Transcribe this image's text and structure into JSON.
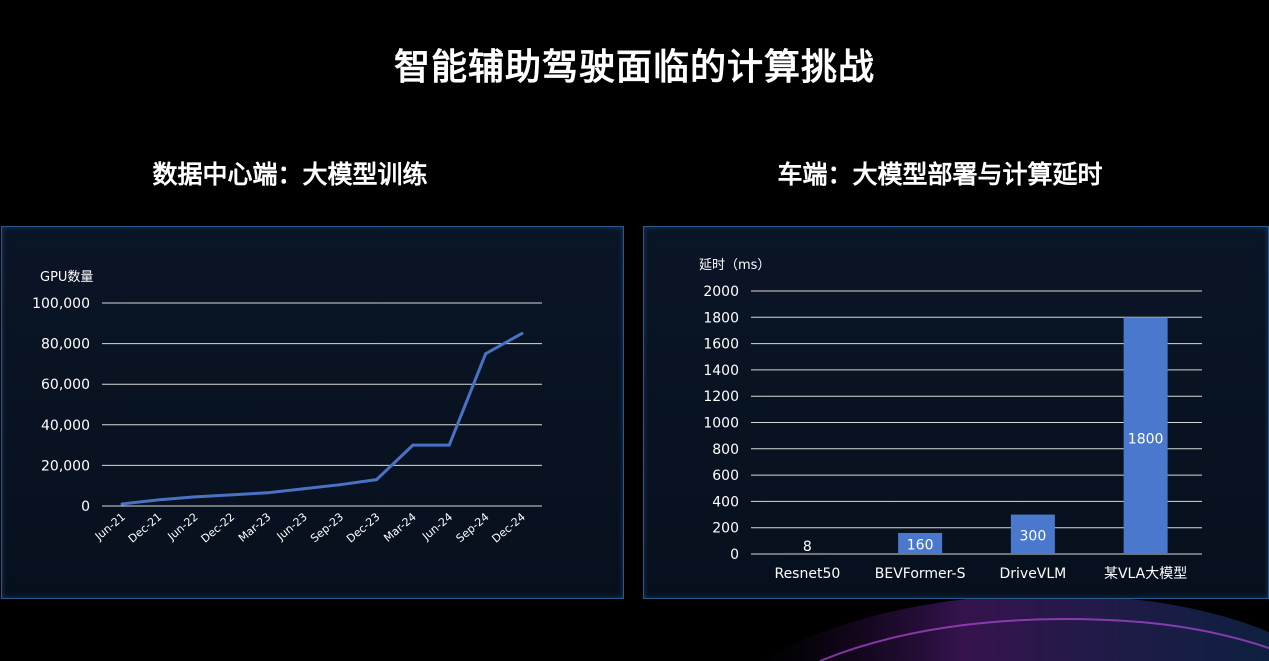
{
  "title": "智能辅助驾驶面临的计算挑战",
  "left_panel": {
    "heading": "数据中心端：大模型训练"
  },
  "right_panel": {
    "heading": "车端：大模型部署与计算延时"
  },
  "chart_data": [
    {
      "type": "line",
      "ylabel": "GPU数量",
      "ylim": [
        0,
        100000
      ],
      "yticks": [
        "100,000",
        "80,000",
        "60,000",
        "40,000",
        "20,000",
        "0"
      ],
      "ytick_values": [
        100000,
        80000,
        60000,
        40000,
        20000,
        0
      ],
      "categories": [
        "Jun-21",
        "Dec-21",
        "Jun-22",
        "Dec-22",
        "Mar-23",
        "Jun-23",
        "Sep-23",
        "Dec-23",
        "Mar-24",
        "Jun-24",
        "Sep-24",
        "Dec-24"
      ],
      "series": [
        {
          "values": [
            1000,
            3000,
            4500,
            5500,
            6500,
            8500,
            10500,
            13000,
            30000,
            30000,
            75000,
            85000
          ]
        }
      ],
      "grid": true,
      "line_color": "#4a72c4"
    },
    {
      "type": "bar",
      "ylabel": "延时（ms）",
      "ylim": [
        0,
        2000
      ],
      "yticks": [
        "2000",
        "1800",
        "1600",
        "1400",
        "1200",
        "1000",
        "800",
        "600",
        "400",
        "200",
        "0"
      ],
      "ytick_values": [
        2000,
        1800,
        1600,
        1400,
        1200,
        1000,
        800,
        600,
        400,
        200,
        0
      ],
      "categories": [
        "Resnet50",
        "BEVFormer-S",
        "DriveVLM",
        "某VLA大模型"
      ],
      "values": [
        8,
        160,
        300,
        1800
      ],
      "data_labels": [
        "8",
        "160",
        "300",
        "1800"
      ],
      "grid": true,
      "bar_color": "#4a78cc"
    }
  ]
}
